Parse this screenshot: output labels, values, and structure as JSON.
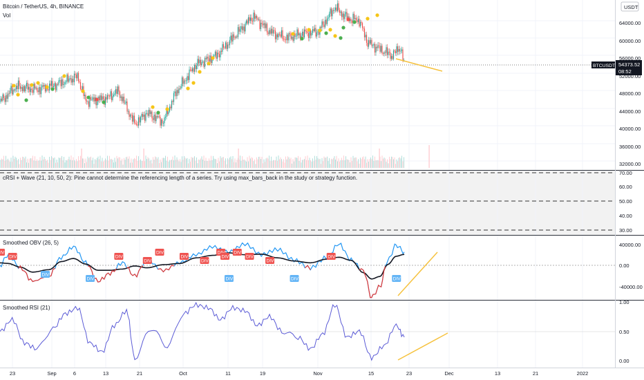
{
  "header": {
    "symbol_title": "Bitcoin / TetherUS, 4h, BINANCE",
    "vol_label": "Vol",
    "currency_badge": "USDT",
    "price_badge_symbol": "BTCUSDT",
    "price_badge_value": "54373.52",
    "price_badge_time": "08:52"
  },
  "colors": {
    "up": "#26a69a",
    "down": "#ef5350",
    "obv_blue": "#2196f3",
    "obv_red": "#e53935",
    "rsi": "#5b5bd6",
    "trend": "#f6c23e",
    "dot_yellow": "#f5c518",
    "dot_green": "#4caf50"
  },
  "panes": {
    "crsi_error": "cRSI + Wave (21, 10, 50, 2): Pine cannot determine the referencing length of a series. Try using max_bars_back in the study or strategy function.",
    "obv_title": "Smoothed OBV (26, 5)",
    "rsi_title": "Smoothed RSI (21)",
    "div_label": "DIV"
  },
  "chart_data": [
    {
      "type": "candlestick",
      "title": "Bitcoin / TetherUS, 4h, BINANCE",
      "price_axis_ticks": [
        "64000.00",
        "60000.00",
        "56000.00",
        "52000.00",
        "48000.00",
        "44000.00",
        "40000.00",
        "36000.00",
        "32000.00"
      ],
      "close_anchors": [
        {
          "x": "Aug 19",
          "y": 46000
        },
        {
          "x": "Aug 23",
          "y": 49500
        },
        {
          "x": "Aug 28",
          "y": 48800
        },
        {
          "x": "Sep 2",
          "y": 50000
        },
        {
          "x": "Sep 7",
          "y": 51800
        },
        {
          "x": "Sep 9",
          "y": 46200
        },
        {
          "x": "Sep 14",
          "y": 46800
        },
        {
          "x": "Sep 17",
          "y": 48500
        },
        {
          "x": "Sep 21",
          "y": 41000
        },
        {
          "x": "Sep 24",
          "y": 43500
        },
        {
          "x": "Sep 28",
          "y": 41500
        },
        {
          "x": "Oct 1",
          "y": 48000
        },
        {
          "x": "Oct 6",
          "y": 54500
        },
        {
          "x": "Oct 11",
          "y": 56500
        },
        {
          "x": "Oct 16",
          "y": 61500
        },
        {
          "x": "Oct 20",
          "y": 65500
        },
        {
          "x": "Oct 24",
          "y": 62000
        },
        {
          "x": "Oct 28",
          "y": 60500
        },
        {
          "x": "Nov 1",
          "y": 61500
        },
        {
          "x": "Nov 5",
          "y": 62000
        },
        {
          "x": "Nov 9",
          "y": 67500
        },
        {
          "x": "Nov 12",
          "y": 65000
        },
        {
          "x": "Nov 15",
          "y": 64500
        },
        {
          "x": "Nov 17",
          "y": 59500
        },
        {
          "x": "Nov 20",
          "y": 58000
        },
        {
          "x": "Nov 23",
          "y": 56500
        },
        {
          "x": "Nov 25",
          "y": 58500
        },
        {
          "x": "Nov 26",
          "y": 54373.52
        }
      ],
      "trendline": {
        "from": {
          "x": "Nov 19",
          "y": 55500
        },
        "to": {
          "x": "Nov 28",
          "y": 53000
        }
      },
      "last_price": 54373.52
    },
    {
      "type": "bar",
      "title": "Vol",
      "note": "volume histogram overlaid on the price pane"
    },
    {
      "type": "line",
      "title": "cRSI + Wave (21, 10, 50, 2)",
      "y_ticks": [
        "70.00",
        "60.00",
        "50.00",
        "40.00",
        "30.00"
      ],
      "bands": [
        70,
        50,
        30
      ]
    },
    {
      "type": "line",
      "title": "Smoothed OBV (26, 5)",
      "y_ticks": [
        "40000.00",
        "0.00",
        "-40000.00"
      ],
      "series": [
        {
          "x": [
            "Aug 19",
            "Aug 21",
            "Aug 24",
            "Aug 27",
            "Aug 31",
            "Sep 3",
            "Sep 6",
            "Sep 9",
            "Sep 12",
            "Sep 15",
            "Sep 18",
            "Sep 21",
            "Sep 24",
            "Sep 28",
            "Oct 2",
            "Oct 6",
            "Oct 10",
            "Oct 14",
            "Oct 18",
            "Oct 22",
            "Oct 26",
            "Oct 30",
            "Nov 3",
            "Nov 7",
            "Nov 10",
            "Nov 13",
            "Nov 16",
            "Nov 18",
            "Nov 20",
            "Nov 22",
            "Nov 24",
            "Nov 26"
          ],
          "values": [
            0,
            20000,
            -5000,
            -30000,
            -20000,
            15000,
            35000,
            5000,
            -30000,
            -15000,
            5000,
            -20000,
            10000,
            -10000,
            5000,
            20000,
            35000,
            25000,
            40000,
            20000,
            30000,
            10000,
            -5000,
            15000,
            40000,
            10000,
            -10000,
            -60000,
            -40000,
            10000,
            38000,
            25000
          ]
        }
      ],
      "divergence_labels": [
        {
          "x": "Aug 19",
          "type": "bearish"
        },
        {
          "x": "Aug 22",
          "type": "bearish"
        },
        {
          "x": "Aug 30",
          "type": "bullish"
        },
        {
          "x": "Sep 10",
          "type": "bullish"
        },
        {
          "x": "Sep 17",
          "type": "bearish"
        },
        {
          "x": "Sep 24",
          "type": "bearish"
        },
        {
          "x": "Sep 27",
          "type": "bearish"
        },
        {
          "x": "Oct 3",
          "type": "bearish"
        },
        {
          "x": "Oct 8",
          "type": "bearish"
        },
        {
          "x": "Oct 12",
          "type": "bearish"
        },
        {
          "x": "Oct 13",
          "type": "bearish"
        },
        {
          "x": "Oct 14",
          "type": "bullish"
        },
        {
          "x": "Oct 16",
          "type": "bearish"
        },
        {
          "x": "Oct 19",
          "type": "bearish"
        },
        {
          "x": "Oct 24",
          "type": "bearish"
        },
        {
          "x": "Oct 30",
          "type": "bullish"
        },
        {
          "x": "Nov 8",
          "type": "bearish"
        },
        {
          "x": "Nov 24",
          "type": "bullish"
        }
      ],
      "trendline": {
        "from": {
          "x": "Nov 19",
          "y": -60000
        },
        "to": {
          "x": "Nov 28",
          "y": 30000
        }
      }
    },
    {
      "type": "line",
      "title": "Smoothed RSI (21)",
      "y_ticks": [
        "1.00",
        "0.50",
        "0.00"
      ],
      "series": [
        {
          "x": [
            "Aug 19",
            "Aug 22",
            "Aug 25",
            "Aug 28",
            "Sep 1",
            "Sep 4",
            "Sep 7",
            "Sep 10",
            "Sep 13",
            "Sep 16",
            "Sep 19",
            "Sep 21",
            "Sep 25",
            "Sep 29",
            "Oct 3",
            "Oct 6",
            "Oct 9",
            "Oct 12",
            "Oct 15",
            "Oct 18",
            "Oct 21",
            "Oct 24",
            "Oct 27",
            "Oct 31",
            "Nov 3",
            "Nov 6",
            "Nov 9",
            "Nov 12",
            "Nov 15",
            "Nov 18",
            "Nov 21",
            "Nov 24",
            "Nov 26"
          ],
          "values": [
            0.5,
            0.7,
            0.3,
            0.2,
            0.55,
            0.8,
            0.9,
            0.3,
            0.15,
            0.6,
            0.85,
            0.05,
            0.55,
            0.25,
            0.8,
            0.95,
            0.9,
            0.7,
            0.9,
            0.85,
            0.6,
            0.75,
            0.5,
            0.4,
            0.2,
            0.45,
            0.95,
            0.4,
            0.5,
            0.05,
            0.25,
            0.6,
            0.4
          ]
        }
      ],
      "trendline": {
        "from": {
          "x": "Nov 19",
          "y": 0.05
        },
        "to": {
          "x": "Nov 28",
          "y": 0.48
        }
      }
    }
  ],
  "time_axis": {
    "ticks": [
      "23",
      "Sep",
      "6",
      "13",
      "21",
      "Oct",
      "11",
      "19",
      "Nov",
      "15",
      "23",
      "Dec",
      "13",
      "21",
      "2022"
    ]
  }
}
